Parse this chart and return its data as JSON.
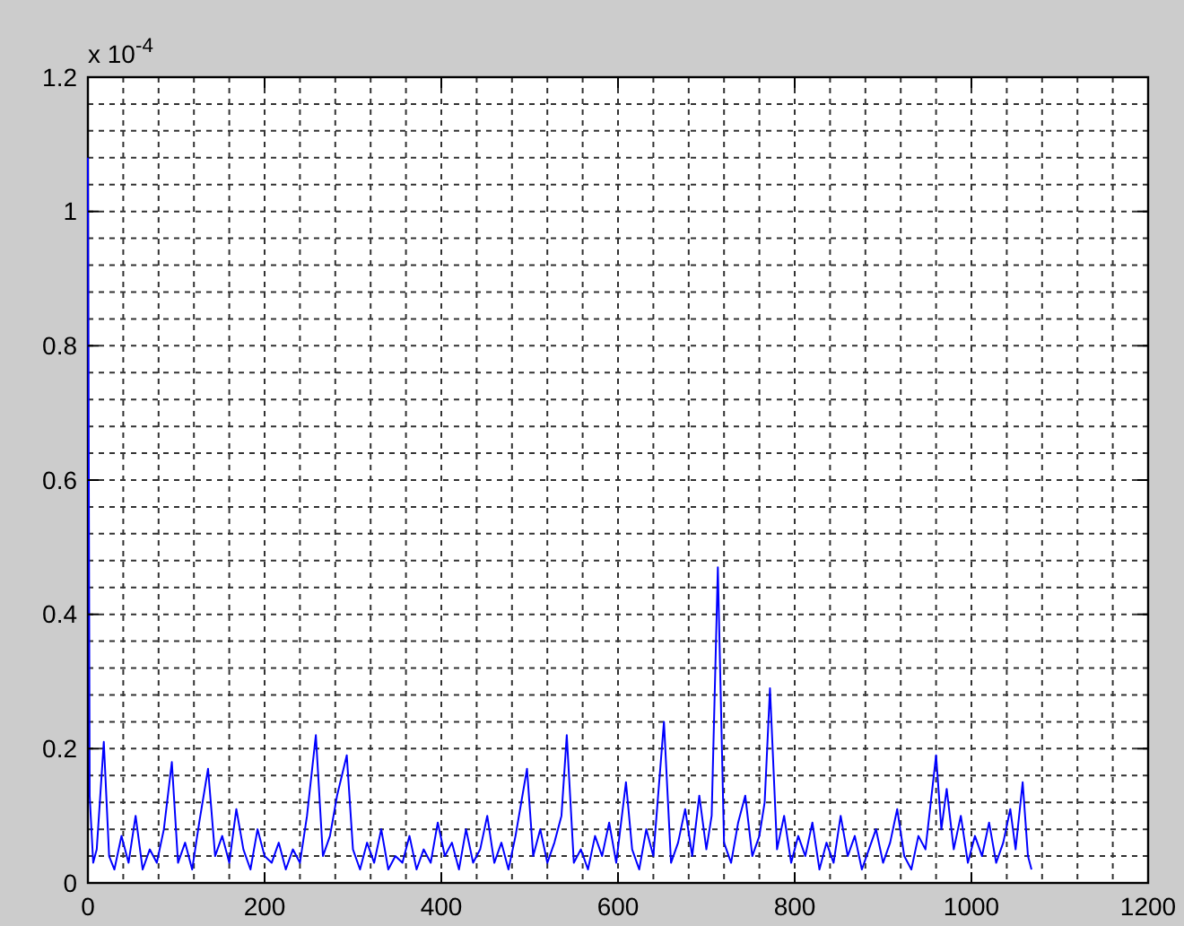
{
  "chart_data": {
    "type": "line",
    "x": [
      0,
      2,
      6,
      10,
      18,
      24,
      30,
      38,
      46,
      54,
      62,
      70,
      78,
      86,
      95,
      102,
      110,
      118,
      126,
      136,
      144,
      152,
      160,
      168,
      176,
      184,
      192,
      200,
      208,
      216,
      224,
      232,
      240,
      248,
      258,
      266,
      274,
      282,
      293,
      300,
      308,
      316,
      324,
      332,
      340,
      348,
      356,
      364,
      372,
      380,
      388,
      396,
      404,
      412,
      420,
      428,
      436,
      444,
      452,
      460,
      468,
      476,
      484,
      497,
      504,
      512,
      520,
      528,
      536,
      542,
      550,
      558,
      566,
      574,
      582,
      590,
      598,
      609,
      616,
      624,
      632,
      640,
      652,
      660,
      668,
      676,
      684,
      692,
      700,
      706,
      713,
      720,
      728,
      736,
      744,
      752,
      760,
      766,
      772,
      780,
      788,
      796,
      804,
      812,
      820,
      828,
      836,
      844,
      852,
      860,
      868,
      876,
      884,
      892,
      900,
      908,
      916,
      924,
      932,
      940,
      948,
      954,
      960,
      966,
      972,
      980,
      988,
      996,
      1004,
      1012,
      1020,
      1028,
      1036,
      1044,
      1050,
      1058,
      1064,
      1068
    ],
    "series": [
      {
        "color": "#0000ff",
        "values": [
          1.08,
          0.13,
          0.03,
          0.05,
          0.21,
          0.04,
          0.02,
          0.07,
          0.03,
          0.1,
          0.02,
          0.05,
          0.03,
          0.08,
          0.18,
          0.03,
          0.06,
          0.02,
          0.09,
          0.17,
          0.04,
          0.07,
          0.03,
          0.11,
          0.05,
          0.02,
          0.08,
          0.04,
          0.03,
          0.06,
          0.02,
          0.05,
          0.03,
          0.1,
          0.22,
          0.04,
          0.07,
          0.13,
          0.19,
          0.05,
          0.02,
          0.06,
          0.03,
          0.08,
          0.02,
          0.04,
          0.03,
          0.07,
          0.02,
          0.05,
          0.03,
          0.09,
          0.04,
          0.06,
          0.02,
          0.08,
          0.03,
          0.05,
          0.1,
          0.03,
          0.06,
          0.02,
          0.07,
          0.17,
          0.04,
          0.08,
          0.03,
          0.06,
          0.1,
          0.22,
          0.03,
          0.05,
          0.02,
          0.07,
          0.04,
          0.09,
          0.03,
          0.15,
          0.05,
          0.02,
          0.08,
          0.04,
          0.24,
          0.03,
          0.06,
          0.11,
          0.04,
          0.13,
          0.05,
          0.1,
          0.47,
          0.06,
          0.03,
          0.09,
          0.13,
          0.04,
          0.07,
          0.12,
          0.29,
          0.05,
          0.1,
          0.03,
          0.07,
          0.04,
          0.09,
          0.02,
          0.06,
          0.03,
          0.1,
          0.04,
          0.07,
          0.02,
          0.05,
          0.08,
          0.03,
          0.06,
          0.11,
          0.04,
          0.02,
          0.07,
          0.05,
          0.12,
          0.19,
          0.08,
          0.14,
          0.05,
          0.1,
          0.03,
          0.07,
          0.04,
          0.09,
          0.03,
          0.06,
          0.11,
          0.05,
          0.15,
          0.04,
          0.02
        ]
      }
    ],
    "xlim": [
      0,
      1200
    ],
    "xticks": [
      0,
      200,
      400,
      600,
      800,
      1000,
      1200
    ],
    "ylim": [
      0,
      1.2
    ],
    "yticks": [
      0,
      0.2,
      0.4,
      0.6,
      0.8,
      1,
      1.2
    ],
    "annotations": [
      "x 10$^{-4}$"
    ],
    "grid": true
  }
}
